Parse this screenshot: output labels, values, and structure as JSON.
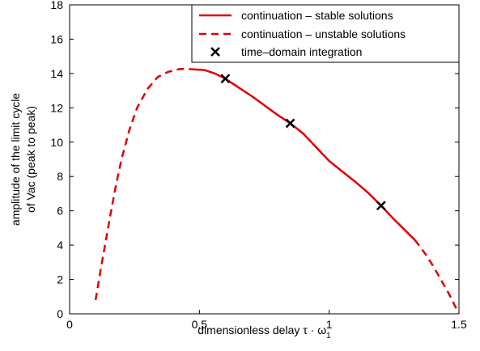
{
  "chart_data": {
    "type": "line",
    "title": "",
    "xlabel": "dimensionless delay τ · ω",
    "xlabel_subscript": "1",
    "ylabel_line1": "amplitude of the limit cycle",
    "ylabel_line2": "of Vac (peak to peak)",
    "xlim": [
      0,
      1.5
    ],
    "ylim": [
      0,
      18
    ],
    "xticks": [
      "0",
      "0.5",
      "1",
      "1.5"
    ],
    "yticks": [
      "0",
      "2",
      "4",
      "6",
      "8",
      "10",
      "12",
      "14",
      "16",
      "18"
    ],
    "grid": false,
    "legend_position": "top-right",
    "color": "#e00000",
    "series": [
      {
        "name": "continuation – stable solutions",
        "style": "solid",
        "x": [
          0.47,
          0.52,
          0.56,
          0.6,
          0.65,
          0.7,
          0.75,
          0.8,
          0.85,
          0.9,
          0.95,
          1.0,
          1.05,
          1.1,
          1.15,
          1.2,
          1.25,
          1.3,
          1.33
        ],
        "y": [
          14.25,
          14.2,
          14.0,
          13.7,
          13.2,
          12.7,
          12.15,
          11.6,
          11.1,
          10.5,
          9.7,
          8.9,
          8.3,
          7.7,
          7.05,
          6.3,
          5.5,
          4.75,
          4.3
        ]
      },
      {
        "name": "continuation – unstable solutions",
        "style": "dashed",
        "segments": [
          {
            "x": [
              0.1,
              0.12,
              0.14,
              0.16,
              0.18,
              0.2,
              0.23,
              0.26,
              0.3,
              0.34,
              0.38,
              0.42,
              0.45,
              0.47
            ],
            "y": [
              0.8,
              2.6,
              4.3,
              6.0,
              7.6,
              9.0,
              10.7,
              12.0,
              13.1,
              13.8,
              14.1,
              14.25,
              14.28,
              14.25
            ]
          },
          {
            "x": [
              1.33,
              1.37,
              1.4,
              1.43,
              1.46,
              1.48,
              1.5
            ],
            "y": [
              4.3,
              3.5,
              2.8,
              2.0,
              1.2,
              0.6,
              0.0
            ]
          }
        ]
      },
      {
        "name": "time–domain integration",
        "style": "marker-x",
        "x": [
          0.6,
          0.85,
          1.2
        ],
        "y": [
          13.7,
          11.1,
          6.3
        ]
      }
    ]
  }
}
